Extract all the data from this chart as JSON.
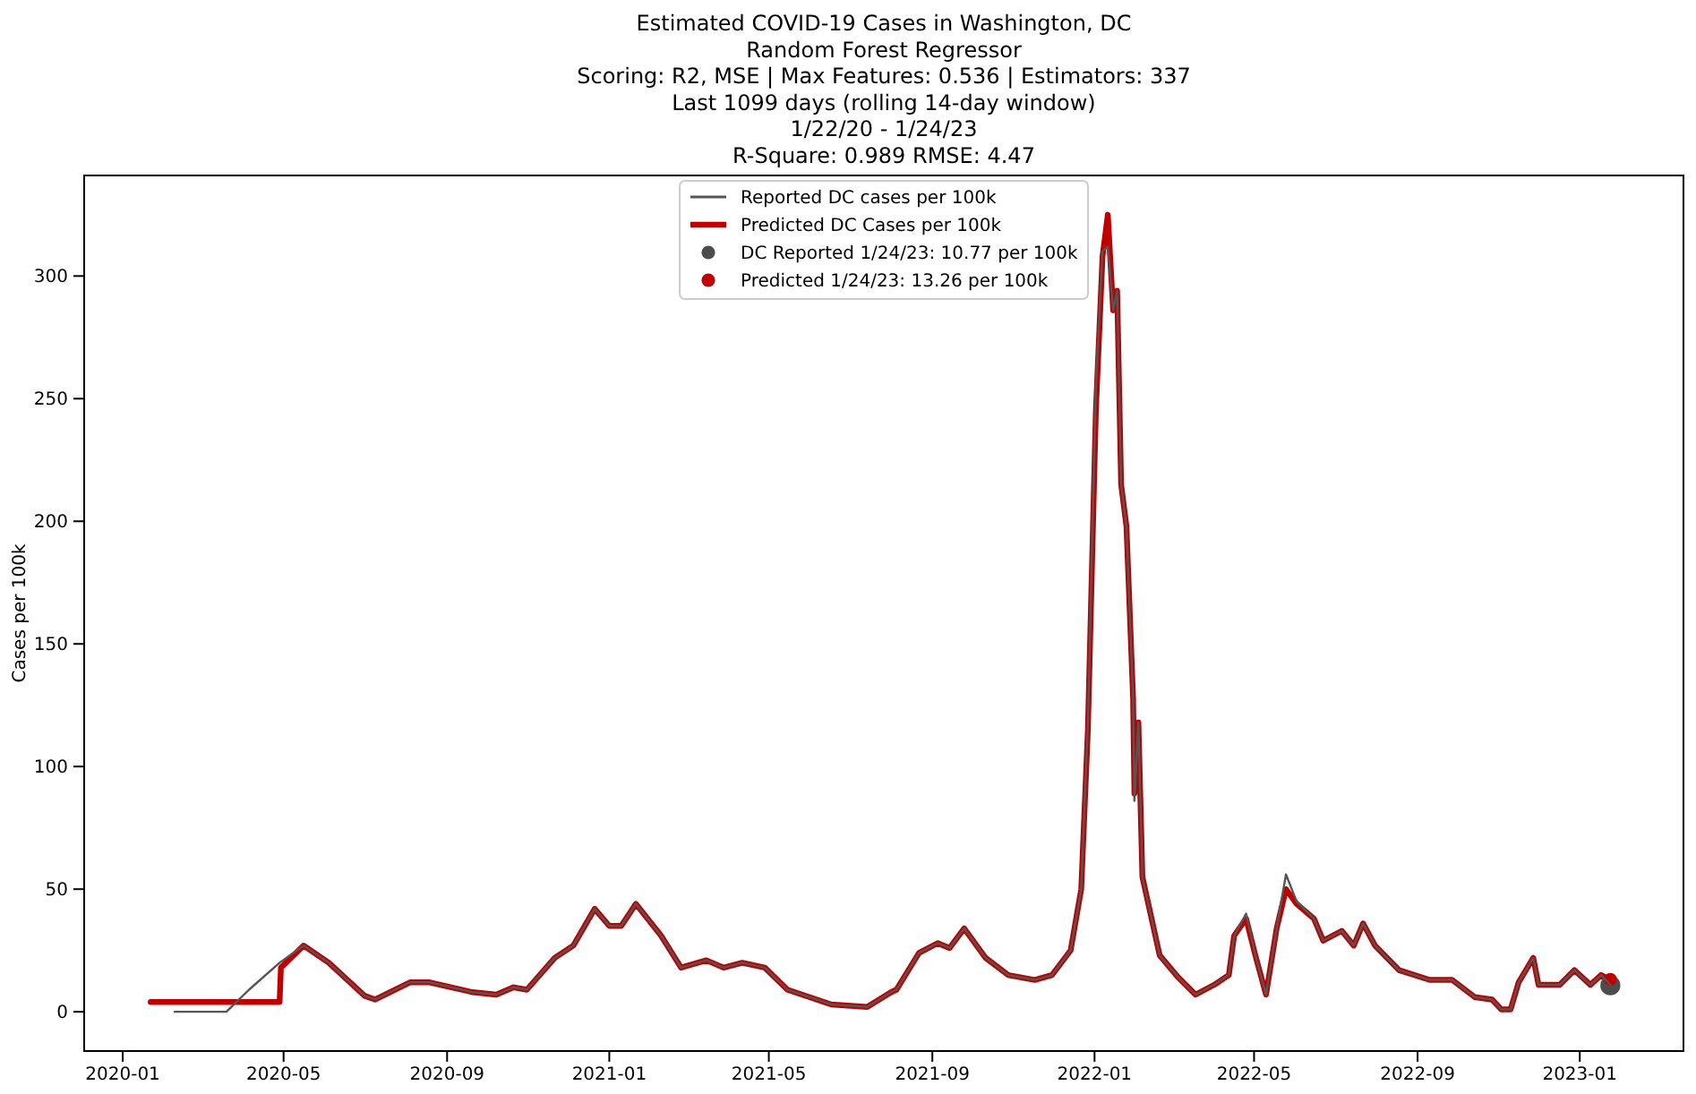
{
  "chart_data": {
    "type": "line",
    "title": "Estimated COVID-19 Cases in Washington, DC\nRandom Forest Regressor\nScoring: R2, MSE | Max Features: 0.536 | Estimators: 337\nLast 1099 days (rolling 14-day window)\n1/22/20 - 1/24/23\nR-Square: 0.989 RMSE: 4.47",
    "ylabel": "Cases per 100k",
    "xlim": [
      "2019-12-03",
      "2023-03-20"
    ],
    "ylim": [
      -16,
      341
    ],
    "xticks": [
      "2020-01",
      "2020-05",
      "2020-09",
      "2021-01",
      "2021-05",
      "2021-09",
      "2022-01",
      "2022-05",
      "2022-09",
      "2023-01"
    ],
    "yticks": [
      0,
      50,
      100,
      150,
      200,
      250,
      300
    ],
    "legend": "top",
    "grid": false,
    "series": [
      {
        "name": "Reported DC cases per 100k",
        "color": "#555555",
        "x": [
          "2020-02-09",
          "2020-03-19",
          "2020-04-05",
          "2020-04-28",
          "2020-05-16",
          "2020-06-04",
          "2020-07-01",
          "2020-07-09",
          "2020-08-04",
          "2020-08-19",
          "2020-09-20",
          "2020-10-08",
          "2020-10-21",
          "2020-10-31",
          "2020-11-21",
          "2020-12-05",
          "2020-12-21",
          "2021-01-01",
          "2021-01-10",
          "2021-01-21",
          "2021-02-09",
          "2021-02-24",
          "2021-03-15",
          "2021-03-28",
          "2021-04-11",
          "2021-04-28",
          "2021-05-15",
          "2021-06-17",
          "2021-07-14",
          "2021-08-01",
          "2021-08-05",
          "2021-08-22",
          "2021-09-05",
          "2021-09-14",
          "2021-09-25",
          "2021-10-11",
          "2021-10-28",
          "2021-11-17",
          "2021-11-30",
          "2021-12-14",
          "2021-12-22",
          "2021-12-27",
          "2022-01-02",
          "2022-01-07",
          "2022-01-11",
          "2022-01-15",
          "2022-01-18",
          "2022-01-21",
          "2022-01-25",
          "2022-01-30",
          "2022-01-31",
          "2022-02-03",
          "2022-02-06",
          "2022-02-19",
          "2022-03-05",
          "2022-03-18",
          "2022-04-01",
          "2022-04-12",
          "2022-04-16",
          "2022-04-25",
          "2022-05-02",
          "2022-05-10",
          "2022-05-18",
          "2022-05-25",
          "2022-06-02",
          "2022-06-15",
          "2022-06-22",
          "2022-07-06",
          "2022-07-15",
          "2022-07-22",
          "2022-07-31",
          "2022-08-18",
          "2022-09-10",
          "2022-09-27",
          "2022-10-14",
          "2022-10-27",
          "2022-11-03",
          "2022-11-10",
          "2022-11-16",
          "2022-11-27",
          "2022-12-01",
          "2022-12-17",
          "2022-12-28",
          "2023-01-09",
          "2023-01-17",
          "2023-01-24"
        ],
        "values": [
          0,
          0,
          9,
          20,
          27,
          20,
          6.5,
          5,
          12,
          12,
          8,
          7,
          10,
          9,
          22,
          27,
          42,
          35,
          35,
          44,
          31,
          18,
          21,
          18,
          20,
          18,
          9,
          3,
          2,
          8,
          9,
          24,
          28,
          26,
          34,
          22,
          15,
          13,
          15,
          25,
          50,
          118,
          255,
          310,
          312,
          286,
          294,
          215,
          198,
          128,
          86,
          118,
          55,
          23,
          14,
          7,
          11,
          15,
          31,
          40,
          23,
          7,
          34,
          56,
          45,
          38,
          29,
          33,
          27,
          36,
          27,
          17,
          13,
          13,
          6,
          5,
          1,
          1,
          12,
          22,
          11,
          11,
          17,
          11,
          15,
          11
        ]
      },
      {
        "name": "Predicted DC Cases per 100k",
        "color": "#c00000",
        "x": [
          "2020-01-22",
          "2020-04-28",
          "2020-04-29",
          "2020-05-16",
          "2020-06-04",
          "2020-07-01",
          "2020-07-09",
          "2020-08-04",
          "2020-08-19",
          "2020-09-20",
          "2020-10-08",
          "2020-10-21",
          "2020-10-31",
          "2020-11-21",
          "2020-12-05",
          "2020-12-21",
          "2021-01-01",
          "2021-01-10",
          "2021-01-21",
          "2021-02-09",
          "2021-02-24",
          "2021-03-15",
          "2021-03-28",
          "2021-04-11",
          "2021-04-28",
          "2021-05-15",
          "2021-06-17",
          "2021-07-14",
          "2021-08-01",
          "2021-08-05",
          "2021-08-22",
          "2021-09-05",
          "2021-09-14",
          "2021-09-25",
          "2021-10-11",
          "2021-10-28",
          "2021-11-17",
          "2021-11-30",
          "2021-12-14",
          "2021-12-22",
          "2021-12-27",
          "2022-01-02",
          "2022-01-07",
          "2022-01-11",
          "2022-01-15",
          "2022-01-18",
          "2022-01-21",
          "2022-01-25",
          "2022-01-30",
          "2022-01-31",
          "2022-02-03",
          "2022-02-06",
          "2022-02-19",
          "2022-03-05",
          "2022-03-18",
          "2022-04-01",
          "2022-04-12",
          "2022-04-16",
          "2022-04-25",
          "2022-05-02",
          "2022-05-10",
          "2022-05-18",
          "2022-05-25",
          "2022-06-02",
          "2022-06-15",
          "2022-06-22",
          "2022-07-06",
          "2022-07-15",
          "2022-07-22",
          "2022-07-31",
          "2022-08-18",
          "2022-09-10",
          "2022-09-27",
          "2022-10-14",
          "2022-10-27",
          "2022-11-03",
          "2022-11-10",
          "2022-11-16",
          "2022-11-27",
          "2022-12-01",
          "2022-12-17",
          "2022-12-28",
          "2023-01-09",
          "2023-01-17",
          "2023-01-24"
        ],
        "values": [
          4,
          4,
          18,
          27,
          20,
          6.5,
          5,
          12,
          12,
          8,
          7,
          10,
          9,
          22,
          27,
          42,
          35,
          35,
          44,
          31,
          18,
          21,
          18,
          20,
          18,
          9,
          3,
          2,
          8,
          9,
          24,
          28,
          26,
          34,
          22,
          15,
          13,
          15,
          25,
          50,
          115,
          245,
          308,
          325,
          286,
          294,
          215,
          198,
          128,
          89,
          118,
          55,
          23,
          14,
          7,
          11,
          15,
          31,
          38,
          23,
          7,
          34,
          50,
          44,
          38,
          29,
          33,
          27,
          36,
          27,
          17,
          13,
          13,
          6,
          5,
          1,
          1,
          12,
          22,
          11,
          11,
          17,
          11,
          15,
          13
        ]
      },
      {
        "name": "DC Reported 1/24/23: 10.77 per 100k",
        "type": "scatter",
        "marker": "circle",
        "color": "#4d4d4d",
        "x": [
          "2023-01-24"
        ],
        "values": [
          10.77
        ]
      },
      {
        "name": "Predicted 1/24/23: 13.26 per 100k",
        "type": "scatter",
        "marker": "circle",
        "color": "#c00000",
        "x": [
          "2023-01-24"
        ],
        "values": [
          13.26
        ]
      }
    ]
  }
}
